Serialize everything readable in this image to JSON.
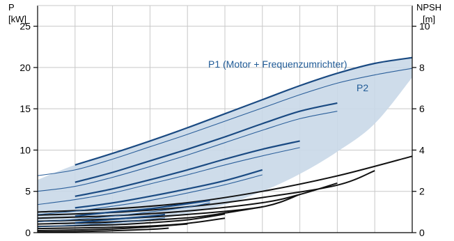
{
  "chart_data": {
    "type": "line",
    "axes": {
      "left": {
        "label_line1": "P",
        "label_line2": "[kW]",
        "min": 0,
        "max": 27.5,
        "ticks": [
          0,
          5,
          10,
          15,
          20,
          25
        ],
        "tick_labels": [
          "0",
          "5",
          "10",
          "15",
          "20",
          "25"
        ]
      },
      "right": {
        "label_line1": "NPSH",
        "label_line2": "[m]",
        "min": 0,
        "max": 11,
        "ticks": [
          0,
          2,
          4,
          6,
          8,
          10
        ],
        "tick_labels": [
          "0",
          "2",
          "4",
          "6",
          "8",
          "10"
        ]
      },
      "x": {
        "min": 0,
        "max": 100
      }
    },
    "grid": true,
    "annotations": [
      {
        "text": "P1 (Motor + Frequenzumrichter)",
        "color": "#1f5a96"
      },
      {
        "text": "P2",
        "color": "#1f5a96"
      }
    ],
    "colors": {
      "p1_line": "#1a4a82",
      "p2_line": "#2b5f9a",
      "band_fill": "#c9d8e8",
      "npsh_line": "#111111",
      "grid": "#c8c8c8",
      "axis": "#000000"
    },
    "band": {
      "upper": [
        [
          0,
          6.4
        ],
        [
          10,
          8.2
        ],
        [
          20,
          9.6
        ],
        [
          30,
          11.1
        ],
        [
          40,
          12.7
        ],
        [
          50,
          14.4
        ],
        [
          60,
          16.1
        ],
        [
          70,
          17.8
        ],
        [
          80,
          19.3
        ],
        [
          90,
          20.5
        ],
        [
          100,
          21.2
        ]
      ],
      "lower": [
        [
          0,
          1.5
        ],
        [
          10,
          0.8
        ],
        [
          20,
          0.8
        ],
        [
          30,
          1.4
        ],
        [
          40,
          2.3
        ],
        [
          50,
          3.4
        ],
        [
          60,
          5.0
        ],
        [
          70,
          7.1
        ],
        [
          80,
          9.8
        ],
        [
          90,
          13.2
        ],
        [
          100,
          18.8
        ]
      ]
    },
    "p1_series": [
      {
        "values": [
          [
            10,
            8.2
          ],
          [
            20,
            9.6
          ],
          [
            30,
            11.1
          ],
          [
            40,
            12.7
          ],
          [
            50,
            14.4
          ],
          [
            60,
            16.1
          ],
          [
            70,
            17.8
          ],
          [
            80,
            19.3
          ],
          [
            90,
            20.5
          ],
          [
            100,
            21.2
          ]
        ]
      },
      {
        "values": [
          [
            10,
            6.1
          ],
          [
            20,
            7.3
          ],
          [
            30,
            8.7
          ],
          [
            40,
            10.1
          ],
          [
            50,
            11.6
          ],
          [
            60,
            13.2
          ],
          [
            70,
            14.7
          ],
          [
            80,
            15.7
          ]
        ]
      },
      {
        "values": [
          [
            10,
            4.4
          ],
          [
            20,
            5.3
          ],
          [
            30,
            6.4
          ],
          [
            40,
            7.6
          ],
          [
            50,
            8.9
          ],
          [
            60,
            10.1
          ],
          [
            70,
            11.1
          ]
        ]
      },
      {
        "values": [
          [
            10,
            3.0
          ],
          [
            20,
            3.6
          ],
          [
            30,
            4.4
          ],
          [
            40,
            5.3
          ],
          [
            50,
            6.3
          ],
          [
            60,
            7.6
          ]
        ]
      },
      {
        "values": [
          [
            10,
            2.0
          ],
          [
            20,
            2.5
          ],
          [
            30,
            2.9
          ],
          [
            40,
            3.5
          ],
          [
            46,
            3.9
          ]
        ]
      },
      {
        "values": [
          [
            10,
            1.2
          ],
          [
            20,
            1.6
          ],
          [
            30,
            2.0
          ],
          [
            34,
            2.2
          ]
        ]
      }
    ],
    "p2_series": [
      {
        "values": [
          [
            0,
            6.9
          ],
          [
            10,
            7.6
          ],
          [
            20,
            8.9
          ],
          [
            30,
            10.4
          ],
          [
            40,
            11.9
          ],
          [
            50,
            13.5
          ],
          [
            60,
            15.1
          ],
          [
            70,
            16.7
          ],
          [
            80,
            18.1
          ],
          [
            90,
            19.1
          ],
          [
            100,
            19.9
          ]
        ]
      },
      {
        "values": [
          [
            0,
            5.0
          ],
          [
            10,
            5.6
          ],
          [
            20,
            6.7
          ],
          [
            30,
            8.0
          ],
          [
            40,
            9.4
          ],
          [
            50,
            10.9
          ],
          [
            60,
            12.4
          ],
          [
            70,
            13.8
          ],
          [
            80,
            14.7
          ]
        ]
      },
      {
        "values": [
          [
            0,
            3.4
          ],
          [
            10,
            4.0
          ],
          [
            20,
            4.8
          ],
          [
            30,
            5.9
          ],
          [
            40,
            7.0
          ],
          [
            50,
            8.2
          ],
          [
            60,
            9.3
          ],
          [
            70,
            10.3
          ]
        ]
      },
      {
        "values": [
          [
            0,
            2.2
          ],
          [
            10,
            2.6
          ],
          [
            20,
            3.2
          ],
          [
            30,
            3.9
          ],
          [
            40,
            4.8
          ],
          [
            50,
            5.8
          ],
          [
            60,
            7.0
          ]
        ]
      },
      {
        "values": [
          [
            0,
            1.3
          ],
          [
            10,
            1.6
          ],
          [
            20,
            2.0
          ],
          [
            30,
            2.5
          ],
          [
            40,
            3.1
          ],
          [
            46,
            3.6
          ]
        ]
      },
      {
        "values": [
          [
            0,
            0.7
          ],
          [
            10,
            0.9
          ],
          [
            20,
            1.2
          ],
          [
            30,
            1.6
          ],
          [
            34,
            1.8
          ]
        ]
      }
    ],
    "npsh_series": [
      {
        "values": [
          [
            0,
            1.0
          ],
          [
            20,
            1.15
          ],
          [
            40,
            1.45
          ],
          [
            60,
            2.0
          ],
          [
            80,
            2.75
          ],
          [
            100,
            3.7
          ]
        ]
      },
      {
        "values": [
          [
            0,
            0.85
          ],
          [
            20,
            0.98
          ],
          [
            40,
            1.25
          ],
          [
            60,
            1.7
          ],
          [
            80,
            2.3
          ],
          [
            90,
            3.0
          ]
        ]
      },
      {
        "values": [
          [
            0,
            0.7
          ],
          [
            20,
            0.82
          ],
          [
            40,
            1.05
          ],
          [
            60,
            1.45
          ],
          [
            70,
            1.85
          ],
          [
            80,
            2.4
          ]
        ]
      },
      {
        "values": [
          [
            0,
            0.55
          ],
          [
            20,
            0.66
          ],
          [
            40,
            0.88
          ],
          [
            60,
            1.25
          ],
          [
            70,
            1.85
          ]
        ]
      },
      {
        "values": [
          [
            0,
            0.42
          ],
          [
            20,
            0.52
          ],
          [
            40,
            0.72
          ],
          [
            50,
            0.95
          ],
          [
            60,
            1.25
          ]
        ]
      },
      {
        "values": [
          [
            0,
            0.3
          ],
          [
            20,
            0.38
          ],
          [
            30,
            0.48
          ],
          [
            40,
            0.62
          ],
          [
            50,
            0.9
          ]
        ]
      },
      {
        "values": [
          [
            0,
            0.2
          ],
          [
            15,
            0.24
          ],
          [
            30,
            0.32
          ],
          [
            40,
            0.45
          ],
          [
            50,
            0.7
          ]
        ]
      },
      {
        "values": [
          [
            0,
            0.1
          ],
          [
            10,
            0.13
          ],
          [
            20,
            0.18
          ],
          [
            30,
            0.28
          ],
          [
            40,
            0.42
          ]
        ]
      },
      {
        "values": [
          [
            0,
            0.03
          ],
          [
            10,
            0.05
          ],
          [
            20,
            0.09
          ],
          [
            30,
            0.16
          ],
          [
            35,
            0.22
          ]
        ]
      }
    ]
  }
}
